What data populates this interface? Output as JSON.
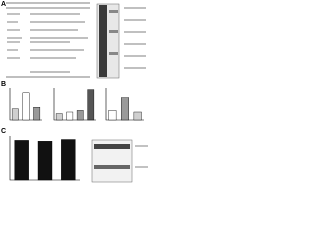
{
  "panels": [
    {
      "label": "A"
    },
    {
      "label": "B",
      "charts": [
        {
          "ylim": [
            0,
            1
          ],
          "values": [
            0.35,
            0.85,
            0.4
          ],
          "colors": [
            "#cfcfcf",
            "#ffffff",
            "#9a9a9a"
          ]
        },
        {
          "ylim": [
            0,
            1
          ],
          "values": [
            0.2,
            0.25,
            0.3,
            0.95
          ],
          "colors": [
            "#cfcfcf",
            "#ffffff",
            "#9a9a9a",
            "#555555"
          ]
        },
        {
          "ylim": [
            0,
            1
          ],
          "values": [
            0.3,
            0.7,
            0.25
          ],
          "colors": [
            "#ffffff",
            "#9a9a9a",
            "#cfcfcf"
          ]
        }
      ]
    },
    {
      "label": "C",
      "charts": [
        {
          "ylim": [
            0,
            1
          ],
          "values": [
            0.9,
            0.88,
            0.92
          ],
          "colors": [
            "#111111",
            "#111111",
            "#111111"
          ]
        }
      ]
    }
  ]
}
